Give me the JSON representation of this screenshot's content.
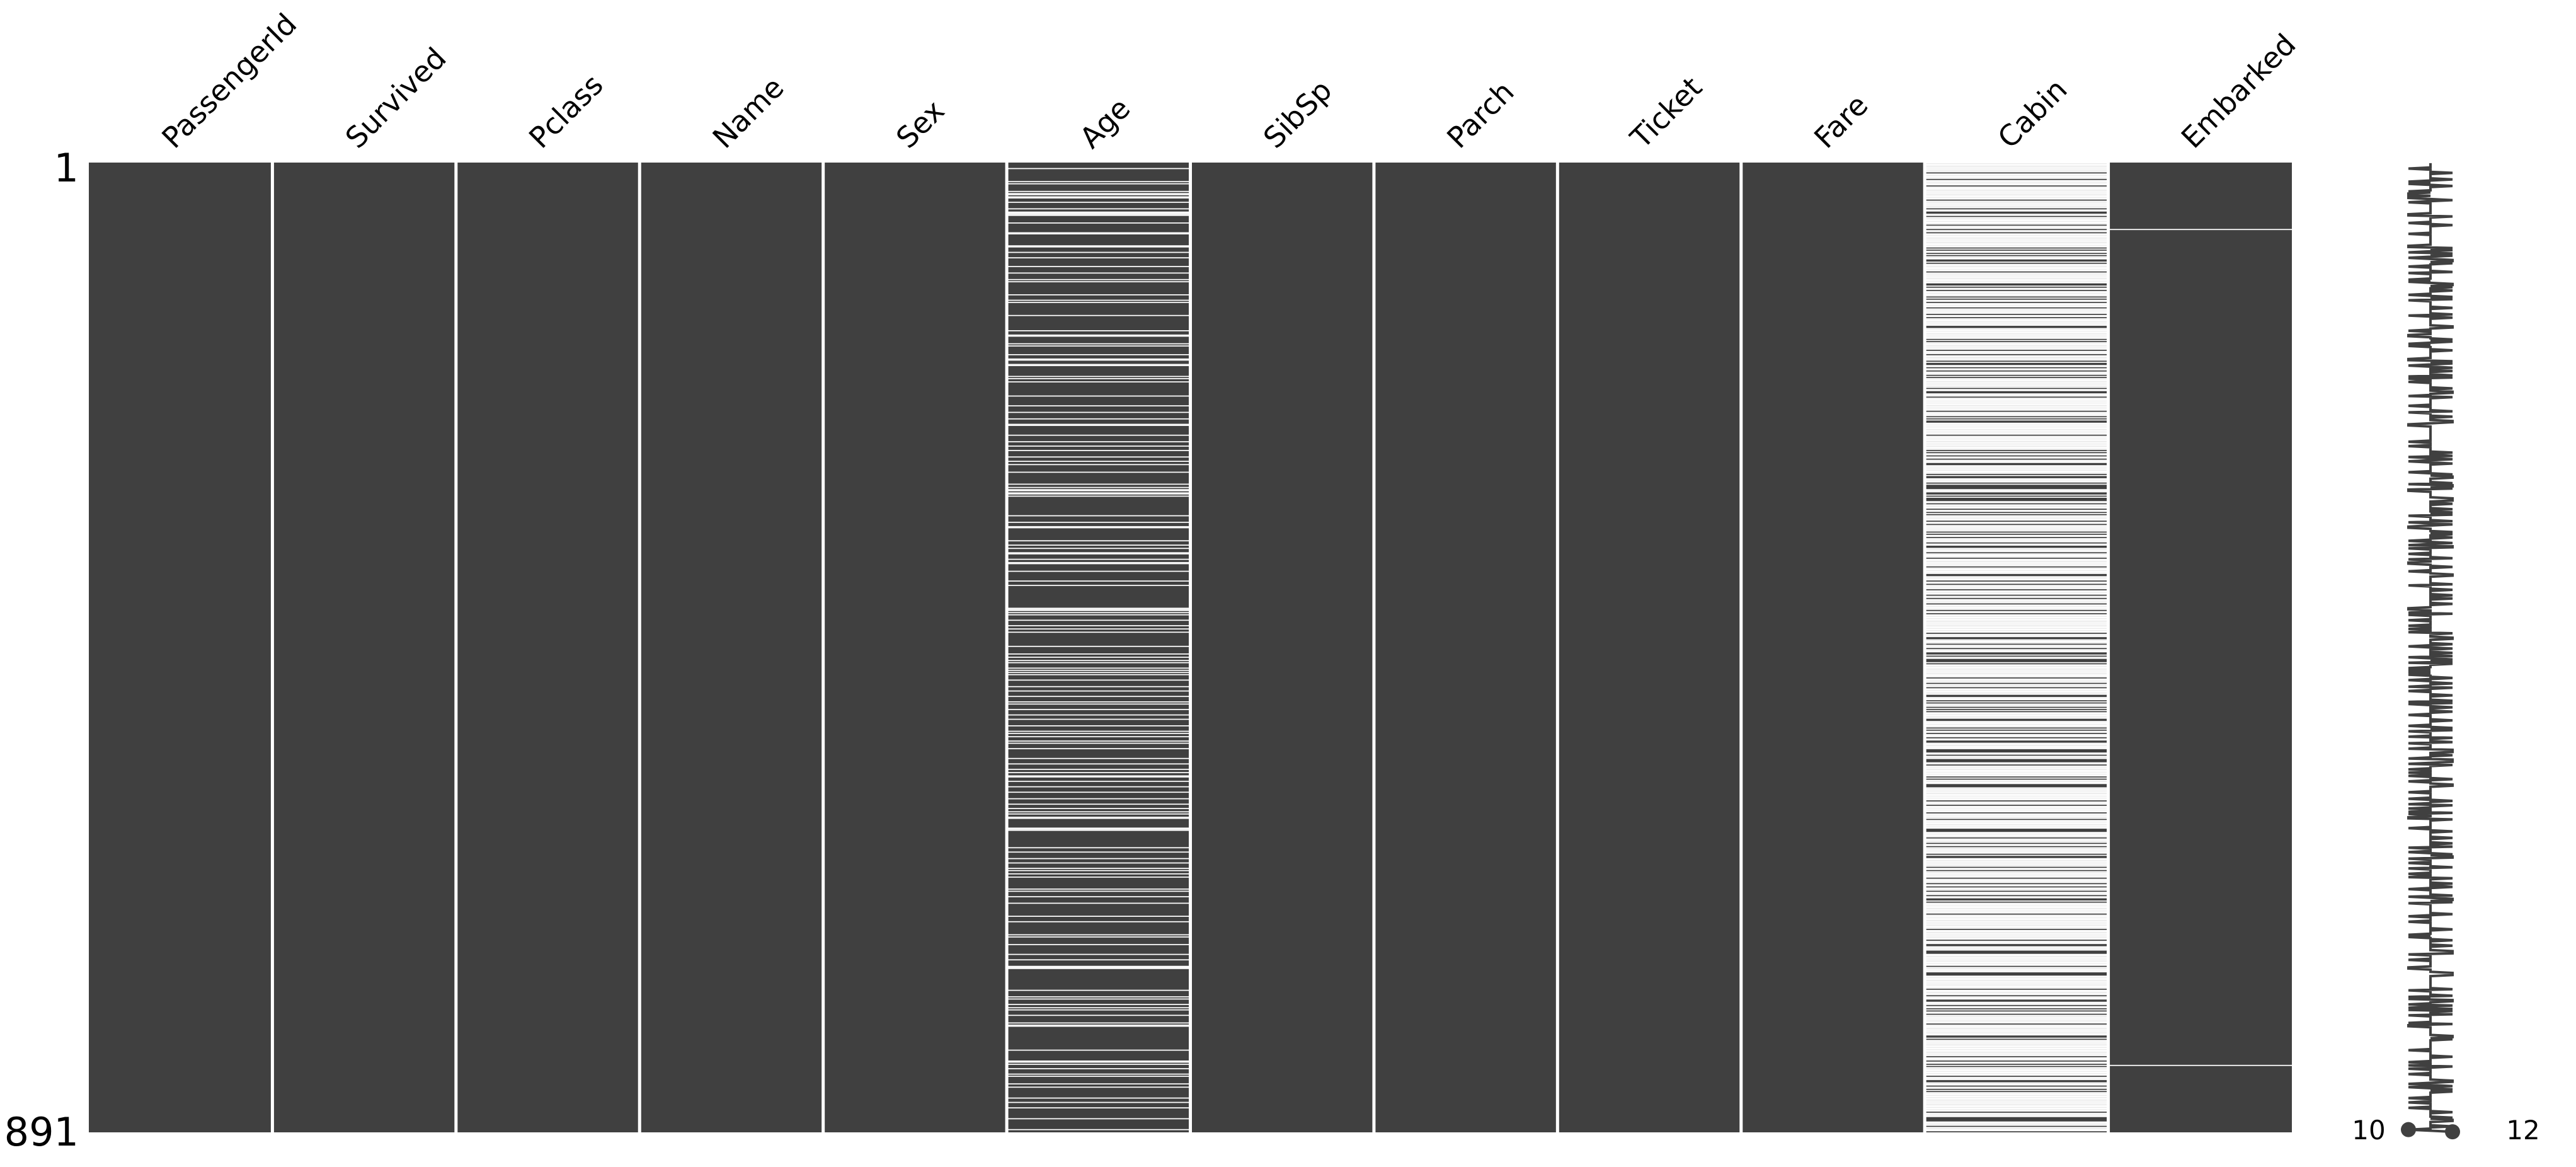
{
  "chart_data": {
    "type": "heatmap",
    "subtype": "missingness-matrix",
    "columns": [
      "PassengerId",
      "Survived",
      "Pclass",
      "Name",
      "Sex",
      "Age",
      "SibSp",
      "Parch",
      "Ticket",
      "Fare",
      "Cabin",
      "Embarked"
    ],
    "n_rows": 891,
    "row_tick_labels": [
      "1",
      "891"
    ],
    "present_color": "#404040",
    "missing_color": "#ffffff",
    "missing_counts": {
      "Age": 177,
      "Cabin": 687,
      "Embarked": 2
    },
    "missing_rows": {
      "Age": [
        6,
        18,
        20,
        27,
        29,
        30,
        32,
        33,
        37,
        43,
        46,
        47,
        48,
        49,
        56,
        65,
        66,
        77,
        78,
        83,
        88,
        96,
        102,
        108,
        110,
        122,
        127,
        129,
        141,
        155,
        159,
        160,
        167,
        169,
        177,
        181,
        182,
        186,
        187,
        197,
        199,
        202,
        215,
        224,
        230,
        236,
        241,
        242,
        251,
        257,
        261,
        265,
        271,
        275,
        278,
        285,
        296,
        299,
        301,
        302,
        304,
        305,
        307,
        325,
        331,
        335,
        336,
        348,
        352,
        355,
        359,
        360,
        365,
        368,
        369,
        376,
        385,
        389,
        410,
        411,
        412,
        414,
        416,
        421,
        426,
        429,
        432,
        445,
        452,
        455,
        458,
        460,
        465,
        467,
        469,
        471,
        476,
        482,
        486,
        491,
        496,
        498,
        503,
        508,
        512,
        518,
        523,
        525,
        528,
        532,
        534,
        539,
        548,
        553,
        558,
        561,
        564,
        565,
        569,
        574,
        579,
        585,
        590,
        594,
        597,
        599,
        602,
        603,
        612,
        613,
        614,
        630,
        634,
        640,
        644,
        649,
        651,
        654,
        657,
        668,
        670,
        675,
        681,
        693,
        698,
        710,
        712,
        719,
        728,
        733,
        739,
        740,
        741,
        761,
        767,
        769,
        774,
        777,
        779,
        784,
        791,
        793,
        794,
        816,
        826,
        827,
        829,
        833,
        838,
        840,
        847,
        850,
        860,
        864,
        869,
        879,
        889
      ],
      "Embarked": [
        62,
        830
      ]
    },
    "sparkline": {
      "min_label": "10",
      "max_label": "12",
      "min": 10,
      "max": 12
    }
  }
}
